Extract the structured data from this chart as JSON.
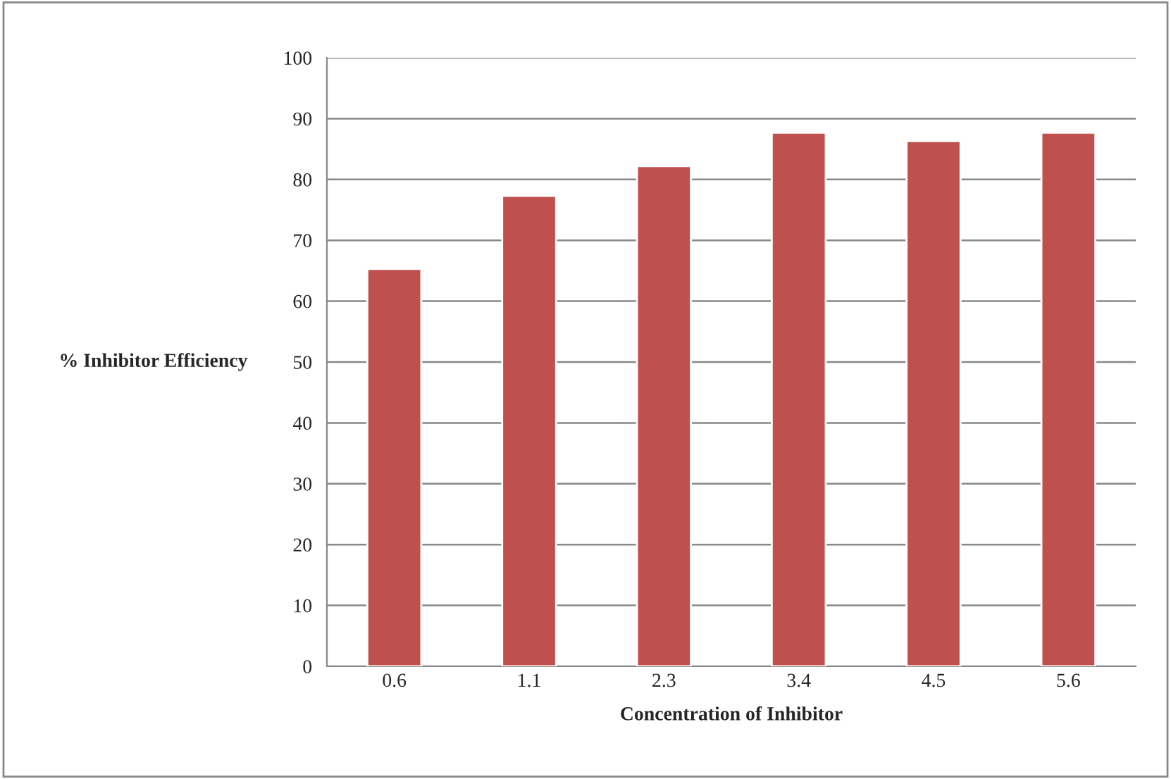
{
  "chart_data": {
    "type": "bar",
    "xlabel": "Concentration of Inhibitor",
    "ylabel": "% Inhibitor Efficiency",
    "categories": [
      "0.6",
      "1.1",
      "2.3",
      "3.4",
      "4.5",
      "5.6"
    ],
    "series": [
      {
        "color": "#c0504d",
        "values": [
          65.3,
          77.3,
          82.2,
          87.7,
          86.3,
          87.7
        ]
      }
    ],
    "ylim": [
      0,
      100
    ],
    "yticks": [
      0,
      10,
      20,
      30,
      40,
      50,
      60,
      70,
      80,
      90,
      100
    ],
    "grid": "y",
    "legend": false
  }
}
